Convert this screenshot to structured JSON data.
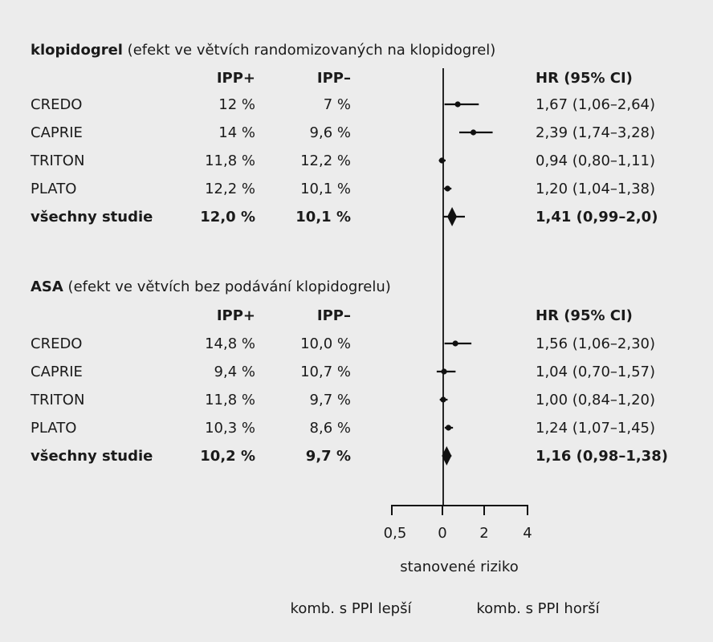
{
  "chart_data": {
    "type": "forest",
    "title": "",
    "xlabel": "stanovené riziko",
    "ticks": [
      "0,5",
      "0",
      "2",
      "4"
    ],
    "footer_left": "komb. s PPI lepší",
    "footer_right": "komb. s PPI horší",
    "sections": [
      {
        "title_bold": "klopidogrel",
        "title_rest": " (efekt ve větvích randomizovaných na klopidogrel)",
        "col_ppi_plus": "IPP+",
        "col_ppi_minus": "IPP–",
        "col_hr": "HR (95% CI)",
        "rows": [
          {
            "name": "CREDO",
            "ppi_plus": "12 %",
            "ppi_minus": "7 %",
            "hr_text": "1,67 (1,06–2,64)",
            "hr": 1.67,
            "lo": 1.06,
            "hi": 2.64,
            "overall": false
          },
          {
            "name": "CAPRIE",
            "ppi_plus": "14 %",
            "ppi_minus": "9,6 %",
            "hr_text": "2,39 (1,74–3,28)",
            "hr": 2.39,
            "lo": 1.74,
            "hi": 3.28,
            "overall": false
          },
          {
            "name": "TRITON",
            "ppi_plus": "11,8 %",
            "ppi_minus": "12,2 %",
            "hr_text": "0,94 (0,80–1,11)",
            "hr": 0.94,
            "lo": 0.8,
            "hi": 1.11,
            "overall": false
          },
          {
            "name": "PLATO",
            "ppi_plus": "12,2 %",
            "ppi_minus": "10,1 %",
            "hr_text": "1,20 (1,04–1,38)",
            "hr": 1.2,
            "lo": 1.04,
            "hi": 1.38,
            "overall": false
          },
          {
            "name": "všechny studie",
            "ppi_plus": "12,0 %",
            "ppi_minus": "10,1 %",
            "hr_text": "1,41 (0,99–2,0)",
            "hr": 1.41,
            "lo": 0.99,
            "hi": 2.0,
            "overall": true
          }
        ]
      },
      {
        "title_bold": "ASA",
        "title_rest": " (efekt ve větvích bez podávání klopidogrelu)",
        "col_ppi_plus": "IPP+",
        "col_ppi_minus": "IPP–",
        "col_hr": "HR (95% CI)",
        "rows": [
          {
            "name": "CREDO",
            "ppi_plus": "14,8 %",
            "ppi_minus": "10,0 %",
            "hr_text": "1,56 (1,06–2,30)",
            "hr": 1.56,
            "lo": 1.06,
            "hi": 2.3,
            "overall": false
          },
          {
            "name": "CAPRIE",
            "ppi_plus": "9,4 %",
            "ppi_minus": "10,7 %",
            "hr_text": "1,04 (0,70–1,57)",
            "hr": 1.04,
            "lo": 0.7,
            "hi": 1.57,
            "overall": false
          },
          {
            "name": "TRITON",
            "ppi_plus": "11,8 %",
            "ppi_minus": "9,7 %",
            "hr_text": "1,00 (0,84–1,20)",
            "hr": 1.0,
            "lo": 0.84,
            "hi": 1.2,
            "overall": false
          },
          {
            "name": "PLATO",
            "ppi_plus": "10,3 %",
            "ppi_minus": "8,6 %",
            "hr_text": "1,24 (1,07–1,45)",
            "hr": 1.24,
            "lo": 1.07,
            "hi": 1.45,
            "overall": false
          },
          {
            "name": "všechny studie",
            "ppi_plus": "10,2 %",
            "ppi_minus": "9,7 %",
            "hr_text": "1,16 (0,98–1,38)",
            "hr": 1.16,
            "lo": 0.98,
            "hi": 1.38,
            "overall": true
          }
        ]
      }
    ]
  }
}
